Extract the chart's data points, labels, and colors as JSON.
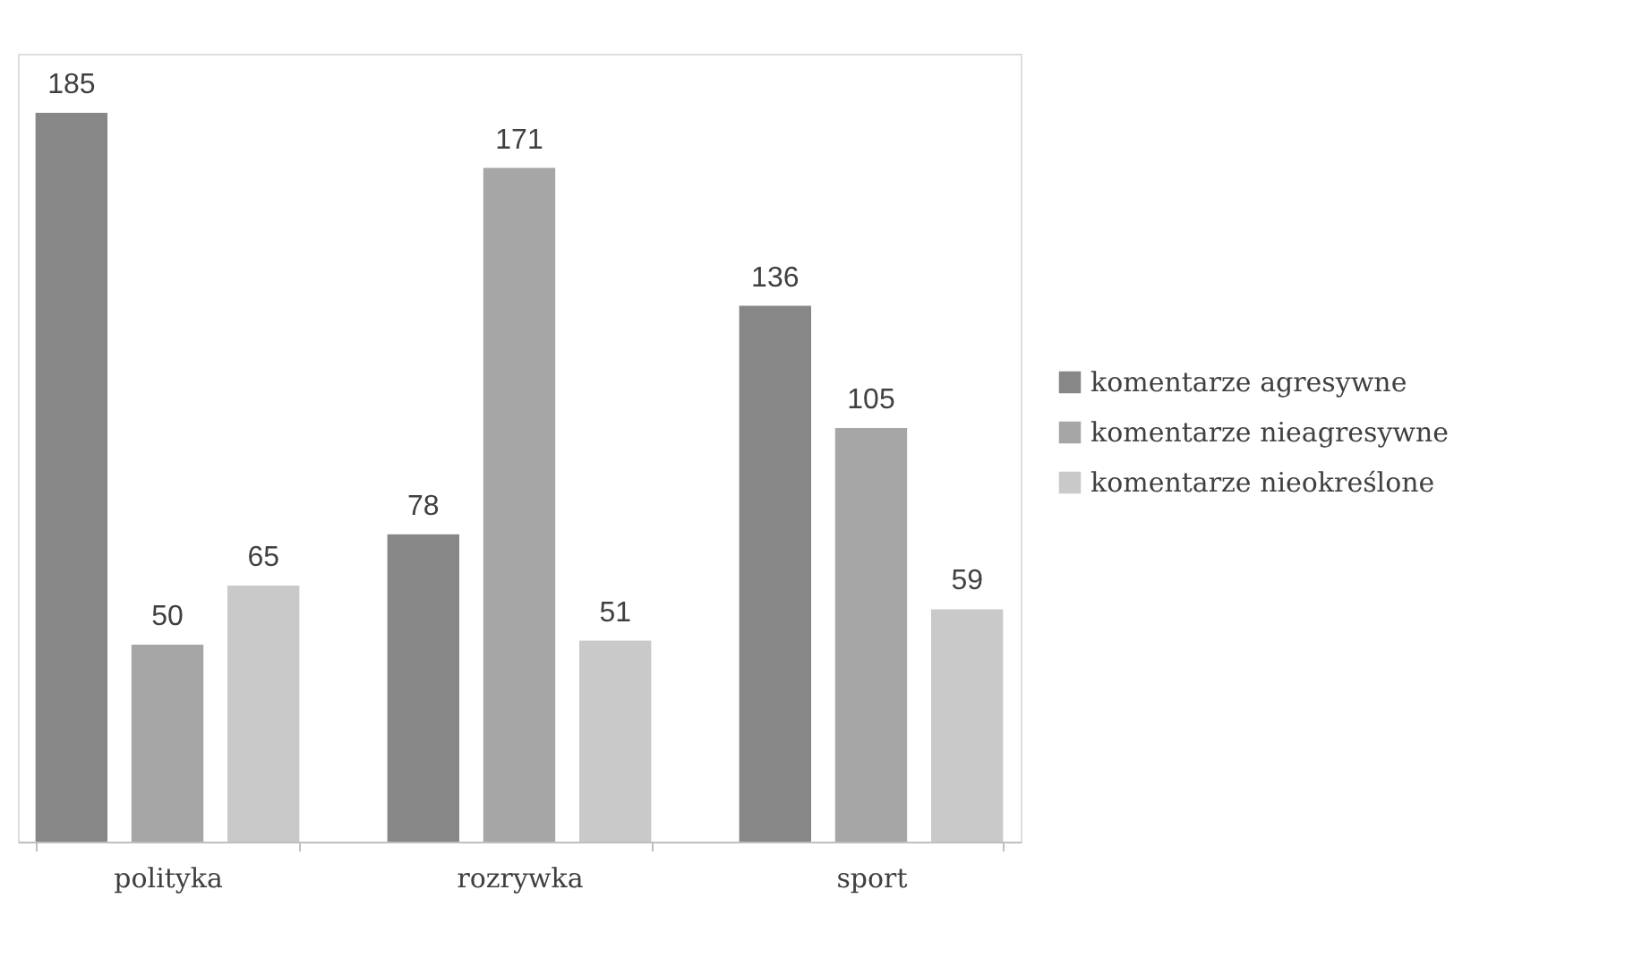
{
  "chart_data": {
    "type": "bar",
    "categories": [
      "polityka",
      "rozrywka",
      "sport"
    ],
    "series": [
      {
        "name": "komentarze agresywne",
        "color": "#878787",
        "values": [
          185,
          78,
          136
        ]
      },
      {
        "name": "komentarze nieagresywne",
        "color": "#a6a6a6",
        "values": [
          50,
          171,
          105
        ]
      },
      {
        "name": "komentarze nieokreślone",
        "color": "#c9c9c9",
        "values": [
          65,
          51,
          59
        ]
      }
    ],
    "data_labels": true,
    "legend": "right",
    "tick_labels": "x"
  }
}
